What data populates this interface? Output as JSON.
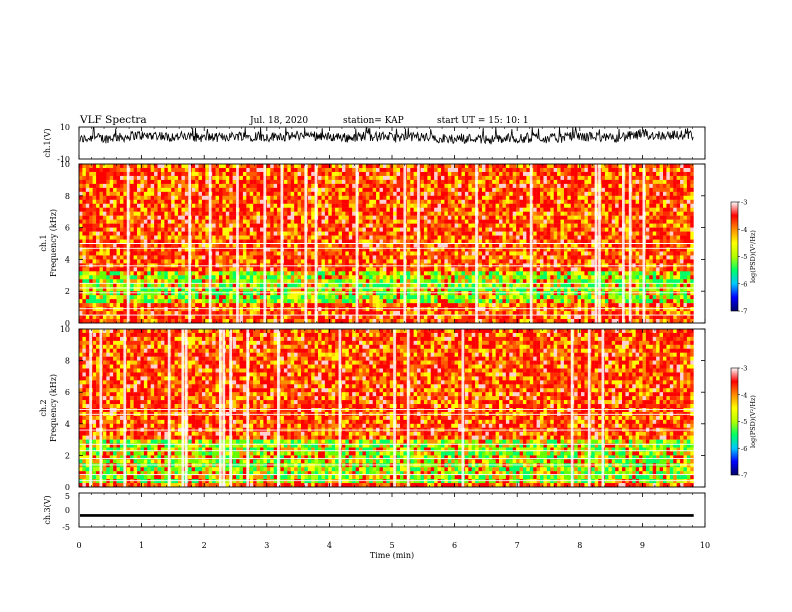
{
  "chart_data": {
    "type": "heatmap",
    "header": {
      "title": "VLF Spectra",
      "date": "Jul. 18, 2020",
      "station": "station= KAP",
      "start": "start UT =  15: 10: 1"
    },
    "xlabel": "Time (min)",
    "xlim": [
      0,
      10
    ],
    "xticks": [
      "0",
      "1",
      "2",
      "3",
      "4",
      "5",
      "6",
      "7",
      "8",
      "9",
      "10"
    ],
    "data_end_min": 9.82,
    "panels": [
      {
        "id": "ch1-waveform",
        "type": "line",
        "ylabel": "ch.1(V)",
        "ylim": [
          -10,
          10
        ],
        "yticks": [
          "10",
          "-10"
        ],
        "baseline_v": 2,
        "amplitude_v": 6,
        "color": "#000000"
      },
      {
        "id": "ch1-spectrogram",
        "type": "heatmap",
        "ylabel_line1": "ch.1",
        "ylabel_line2": "Frequency (kHz)",
        "ylim": [
          0,
          10
        ],
        "yticks": [
          "0",
          "2",
          "4",
          "6",
          "8",
          "10"
        ],
        "green_band_khz": [
          1.2,
          3.2
        ],
        "white_lines_khz": [
          0.5,
          0.9,
          1.9,
          2.2,
          2.5,
          3.6,
          4.7,
          5.0
        ],
        "colorbar": {
          "label": "log(PSD)(V²/Hz)",
          "ticks": [
            "-3",
            "-4",
            "-5",
            "-6",
            "-7"
          ],
          "range": [
            -7,
            -3
          ]
        }
      },
      {
        "id": "ch2-spectrogram",
        "type": "heatmap",
        "ylabel_line1": "ch.2",
        "ylabel_line2": "Frequency (kHz)",
        "ylim": [
          0,
          10
        ],
        "yticks": [
          "0",
          "2",
          "4",
          "6",
          "8",
          "10"
        ],
        "green_band_khz": [
          0.3,
          3.0
        ],
        "white_lines_khz": [
          0.4,
          0.8,
          1.4,
          1.8,
          2.3,
          2.7,
          3.6,
          4.6,
          4.9
        ],
        "colorbar": {
          "label": "log(PSD)(V²/Hz)",
          "ticks": [
            "-3",
            "-4",
            "-5",
            "-6",
            "-7"
          ],
          "range": [
            -7,
            -3
          ]
        }
      },
      {
        "id": "ch3-waveform",
        "type": "line",
        "ylabel": "ch.3(V)",
        "ylim": [
          -5,
          5
        ],
        "yticks": [
          "5",
          "0",
          "-5"
        ],
        "baseline_v": -1.6,
        "band_halfwidth_v": 0.4,
        "color": "#000000"
      }
    ],
    "colormap": [
      "#000066",
      "#0000ff",
      "#00c8ff",
      "#00ff66",
      "#b4ff00",
      "#ffff00",
      "#ff8c00",
      "#ff0000",
      "#ffffff"
    ]
  }
}
